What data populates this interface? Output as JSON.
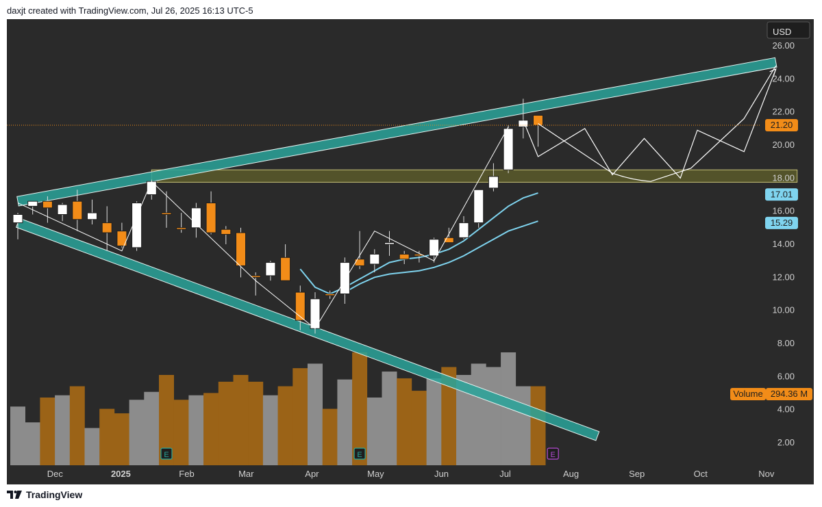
{
  "header": {
    "credit": "daxjt created with TradingView.com, Jul 26, 2025 16:13 UTC-5"
  },
  "footer": {
    "brand": "TradingView"
  },
  "colors": {
    "panel": "#2a2a2a",
    "bull_body": "#ffffff",
    "bear_body": "#f28c18",
    "wick": "#e0e0e0",
    "ma": "#7fd4ef",
    "channel": "#2aa39a",
    "zone": "#5b5a2a",
    "vol_bull": "#8c8c8c",
    "vol_bear": "#9b6317",
    "axis_text": "#d0d0d0",
    "price_badge": "#f28c18",
    "ma_badge": "#7fd4ef"
  },
  "chart_data": {
    "type": "candlestick",
    "title": "",
    "currency": "USD",
    "ylim": [
      0.6,
      27.1
    ],
    "y_ticks": [
      "26.00",
      "24.00",
      "22.00",
      "20.00",
      "18.00",
      "16.00",
      "14.00",
      "12.00",
      "10.00",
      "8.00",
      "6.00",
      "4.00",
      "2.00"
    ],
    "x_ticks": [
      "Dec",
      "2025",
      "Feb",
      "Mar",
      "Apr",
      "May",
      "Jun",
      "Jul",
      "Aug",
      "Sep",
      "Oct",
      "Nov"
    ],
    "last_price": 21.2,
    "ma_labels": [
      "17.01",
      "15.29"
    ],
    "volume_label": "Volume",
    "volume_value": "294.36 M",
    "earnings_marker": "E",
    "candles": [
      {
        "date": "2024-11-18",
        "o": 15.3,
        "h": 15.9,
        "l": 14.3,
        "c": 15.8
      },
      {
        "date": "2024-11-25",
        "o": 16.3,
        "h": 16.6,
        "l": 15.8,
        "c": 16.6
      },
      {
        "date": "2024-12-02",
        "o": 16.6,
        "h": 16.9,
        "l": 15.3,
        "c": 16.2
      },
      {
        "date": "2024-12-09",
        "o": 15.8,
        "h": 16.5,
        "l": 15.4,
        "c": 16.4
      },
      {
        "date": "2024-12-16",
        "o": 16.6,
        "h": 17.3,
        "l": 14.8,
        "c": 15.5
      },
      {
        "date": "2024-12-23",
        "o": 15.5,
        "h": 16.7,
        "l": 15.2,
        "c": 15.9
      },
      {
        "date": "2024-12-30",
        "o": 15.3,
        "h": 16.3,
        "l": 13.6,
        "c": 14.7
      },
      {
        "date": "2025-01-06",
        "o": 14.8,
        "h": 15.3,
        "l": 13.8,
        "c": 13.9
      },
      {
        "date": "2025-01-13",
        "o": 13.8,
        "h": 16.6,
        "l": 13.6,
        "c": 16.5
      },
      {
        "date": "2025-01-20",
        "o": 17.0,
        "h": 17.9,
        "l": 16.7,
        "c": 17.8
      },
      {
        "date": "2025-01-27",
        "o": 15.9,
        "h": 17.2,
        "l": 15.0,
        "c": 15.8
      },
      {
        "date": "2025-02-03",
        "o": 15.0,
        "h": 15.9,
        "l": 14.7,
        "c": 14.9
      },
      {
        "date": "2025-02-10",
        "o": 15.0,
        "h": 16.5,
        "l": 14.4,
        "c": 16.2
      },
      {
        "date": "2025-02-17",
        "o": 16.5,
        "h": 17.2,
        "l": 14.6,
        "c": 14.7
      },
      {
        "date": "2025-02-24",
        "o": 14.9,
        "h": 15.1,
        "l": 14.0,
        "c": 14.6
      },
      {
        "date": "2025-03-03",
        "o": 14.7,
        "h": 15.0,
        "l": 12.0,
        "c": 12.7
      },
      {
        "date": "2025-03-10",
        "o": 12.1,
        "h": 12.3,
        "l": 10.9,
        "c": 12.0
      },
      {
        "date": "2025-03-17",
        "o": 12.1,
        "h": 13.0,
        "l": 11.8,
        "c": 12.9
      },
      {
        "date": "2025-03-24",
        "o": 13.2,
        "h": 14.0,
        "l": 11.8,
        "c": 11.8
      },
      {
        "date": "2025-03-31",
        "o": 11.1,
        "h": 11.5,
        "l": 8.8,
        "c": 9.4
      },
      {
        "date": "2025-04-07",
        "o": 8.9,
        "h": 11.1,
        "l": 8.6,
        "c": 10.7
      },
      {
        "date": "2025-04-14",
        "o": 11.0,
        "h": 11.2,
        "l": 10.7,
        "c": 10.9
      },
      {
        "date": "2025-04-21",
        "o": 11.0,
        "h": 13.2,
        "l": 10.4,
        "c": 12.9
      },
      {
        "date": "2025-04-28",
        "o": 13.1,
        "h": 14.8,
        "l": 12.5,
        "c": 12.7
      },
      {
        "date": "2025-05-05",
        "o": 12.8,
        "h": 13.7,
        "l": 12.3,
        "c": 13.4
      },
      {
        "date": "2025-05-12",
        "o": 14.0,
        "h": 14.8,
        "l": 13.3,
        "c": 14.1
      },
      {
        "date": "2025-05-19",
        "o": 13.4,
        "h": 13.6,
        "l": 12.8,
        "c": 13.1
      },
      {
        "date": "2025-05-26",
        "o": 13.4,
        "h": 13.6,
        "l": 12.9,
        "c": 13.3
      },
      {
        "date": "2025-06-02",
        "o": 13.3,
        "h": 14.4,
        "l": 12.9,
        "c": 14.3
      },
      {
        "date": "2025-06-09",
        "o": 14.4,
        "h": 15.0,
        "l": 14.1,
        "c": 14.1
      },
      {
        "date": "2025-06-16",
        "o": 14.4,
        "h": 15.7,
        "l": 14.3,
        "c": 15.3
      },
      {
        "date": "2025-06-23",
        "o": 15.3,
        "h": 17.3,
        "l": 15.0,
        "c": 17.3
      },
      {
        "date": "2025-06-30",
        "o": 17.4,
        "h": 18.9,
        "l": 17.2,
        "c": 18.1
      },
      {
        "date": "2025-07-07",
        "o": 18.5,
        "h": 21.2,
        "l": 18.3,
        "c": 21.0
      },
      {
        "date": "2025-07-14",
        "o": 21.1,
        "h": 22.8,
        "l": 20.4,
        "c": 21.5
      },
      {
        "date": "2025-07-21",
        "o": 21.8,
        "h": 21.8,
        "l": 19.9,
        "c": 21.2
      }
    ],
    "volume": [
      0.52,
      0.38,
      0.6,
      0.62,
      0.7,
      0.33,
      0.5,
      0.46,
      0.58,
      0.65,
      0.8,
      0.58,
      0.62,
      0.64,
      0.74,
      0.8,
      0.74,
      0.62,
      0.7,
      0.86,
      0.9,
      0.5,
      0.76,
      1.0,
      0.6,
      0.83,
      0.77,
      0.66,
      0.77,
      0.87,
      0.8,
      0.9,
      0.87,
      1.0,
      0.7,
      0.7
    ],
    "ma_fast": [
      {
        "date": "2025-03-31",
        "v": 12.5
      },
      {
        "date": "2025-04-07",
        "v": 11.4
      },
      {
        "date": "2025-04-14",
        "v": 11.0
      },
      {
        "date": "2025-04-21",
        "v": 11.4
      },
      {
        "date": "2025-04-28",
        "v": 11.9
      },
      {
        "date": "2025-05-05",
        "v": 12.4
      },
      {
        "date": "2025-05-12",
        "v": 12.9
      },
      {
        "date": "2025-05-19",
        "v": 13.1
      },
      {
        "date": "2025-05-26",
        "v": 13.2
      },
      {
        "date": "2025-06-02",
        "v": 13.4
      },
      {
        "date": "2025-06-09",
        "v": 13.7
      },
      {
        "date": "2025-06-16",
        "v": 14.2
      },
      {
        "date": "2025-06-23",
        "v": 14.9
      },
      {
        "date": "2025-06-30",
        "v": 15.6
      },
      {
        "date": "2025-07-07",
        "v": 16.3
      },
      {
        "date": "2025-07-14",
        "v": 16.8
      },
      {
        "date": "2025-07-21",
        "v": 17.1
      }
    ],
    "ma_slow": [
      {
        "date": "2025-04-21",
        "v": 11.1
      },
      {
        "date": "2025-04-28",
        "v": 11.6
      },
      {
        "date": "2025-05-05",
        "v": 12.0
      },
      {
        "date": "2025-05-12",
        "v": 12.2
      },
      {
        "date": "2025-05-19",
        "v": 12.3
      },
      {
        "date": "2025-05-26",
        "v": 12.4
      },
      {
        "date": "2025-06-02",
        "v": 12.6
      },
      {
        "date": "2025-06-09",
        "v": 12.9
      },
      {
        "date": "2025-06-16",
        "v": 13.3
      },
      {
        "date": "2025-06-23",
        "v": 13.8
      },
      {
        "date": "2025-06-30",
        "v": 14.3
      },
      {
        "date": "2025-07-07",
        "v": 14.8
      },
      {
        "date": "2025-07-14",
        "v": 15.1
      },
      {
        "date": "2025-07-21",
        "v": 15.4
      }
    ],
    "channel_upper": [
      {
        "date": "2024-11-18",
        "v": 16.6
      },
      {
        "date": "2025-11-10",
        "v": 25.0
      }
    ],
    "channel_lower": [
      {
        "date": "2024-11-18",
        "v": 15.3
      },
      {
        "date": "2025-08-18",
        "v": 2.4
      }
    ],
    "support_zone": {
      "start": "2025-01-20",
      "end": "2025-11-20",
      "low": 17.75,
      "high": 18.5
    },
    "swing_line": [
      {
        "date": "2024-11-18",
        "v": 16.5
      },
      {
        "date": "2025-01-06",
        "v": 13.6
      },
      {
        "date": "2025-01-20",
        "v": 17.8
      },
      {
        "date": "2025-03-10",
        "v": 11.8
      },
      {
        "date": "2025-04-07",
        "v": 8.9
      },
      {
        "date": "2025-05-05",
        "v": 14.8
      },
      {
        "date": "2025-06-02",
        "v": 13.0
      },
      {
        "date": "2025-07-07",
        "v": 21.1
      }
    ],
    "projection_path": [
      {
        "date": "2025-07-14",
        "v": 21.5
      },
      {
        "date": "2025-07-21",
        "v": 19.3
      },
      {
        "date": "2025-08-12",
        "v": 21.0
      },
      {
        "date": "2025-08-25",
        "v": 18.2
      },
      {
        "date": "2025-09-09",
        "v": 20.4
      },
      {
        "date": "2025-09-26",
        "v": 18.0
      },
      {
        "date": "2025-10-04",
        "v": 20.9
      },
      {
        "date": "2025-10-26",
        "v": 19.6
      },
      {
        "date": "2025-11-10",
        "v": 24.6
      }
    ],
    "projection_curve": [
      {
        "date": "2025-07-21",
        "v": 21.3
      },
      {
        "date": "2025-08-25",
        "v": 18.3
      },
      {
        "date": "2025-09-12",
        "v": 17.8
      },
      {
        "date": "2025-10-01",
        "v": 18.6
      },
      {
        "date": "2025-10-26",
        "v": 21.6
      },
      {
        "date": "2025-11-10",
        "v": 24.8
      }
    ],
    "earnings_dates": [
      "2025-01-27",
      "2025-04-28"
    ],
    "future_earnings_date": "2025-07-28"
  }
}
